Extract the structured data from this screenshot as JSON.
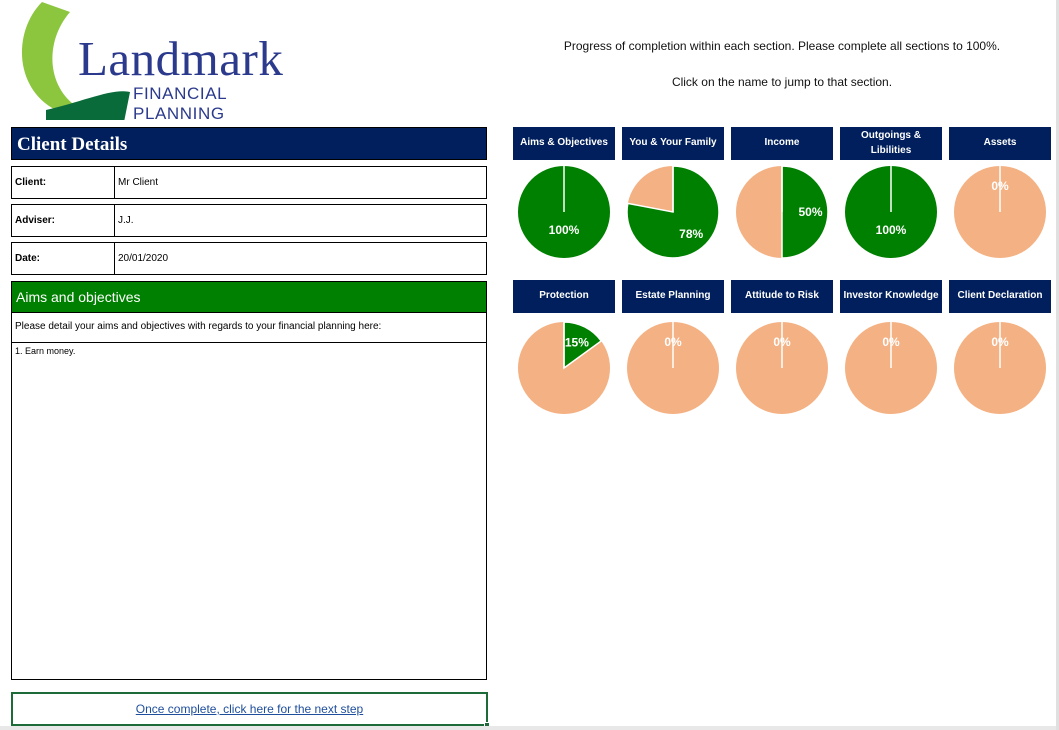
{
  "logo": {
    "word": "Landmark",
    "sub": "FINANCIAL PLANNING"
  },
  "intro": {
    "line1": "Progress of completion within each section. Please complete all sections to 100%.",
    "line2": "Click on the name to jump to that section."
  },
  "client_details": {
    "title": "Client Details",
    "rows": [
      {
        "label": "Client:",
        "value": "Mr Client"
      },
      {
        "label": "Adviser:",
        "value": "J.J."
      },
      {
        "label": "Date:",
        "value": "20/01/2020"
      }
    ]
  },
  "aims": {
    "header": "Aims and objectives",
    "prompt": "Please detail your aims and objectives with regards to your financial planning here:",
    "text": "1. Earn money."
  },
  "next_step": {
    "label": "Once complete, click here for the next step"
  },
  "colors": {
    "navy": "#001f5c",
    "green": "#008000",
    "peach": "#f4b183"
  },
  "sections": [
    {
      "name": "Aims & Objectives",
      "percent": 100,
      "label": "100%"
    },
    {
      "name": "You & Your Family",
      "percent": 78,
      "label": "78%"
    },
    {
      "name": "Income",
      "percent": 50,
      "label": "50%"
    },
    {
      "name": "Outgoings & Libilities",
      "percent": 100,
      "label": "100%"
    },
    {
      "name": "Assets",
      "percent": 0,
      "label": "0%"
    },
    {
      "name": "Protection",
      "percent": 15,
      "label": "15%"
    },
    {
      "name": "Estate Planning",
      "percent": 0,
      "label": "0%"
    },
    {
      "name": "Attitude to Risk",
      "percent": 0,
      "label": "0%"
    },
    {
      "name": "Investor Knowledge",
      "percent": 0,
      "label": "0%"
    },
    {
      "name": "Client Declaration",
      "percent": 0,
      "label": "0%"
    }
  ]
}
